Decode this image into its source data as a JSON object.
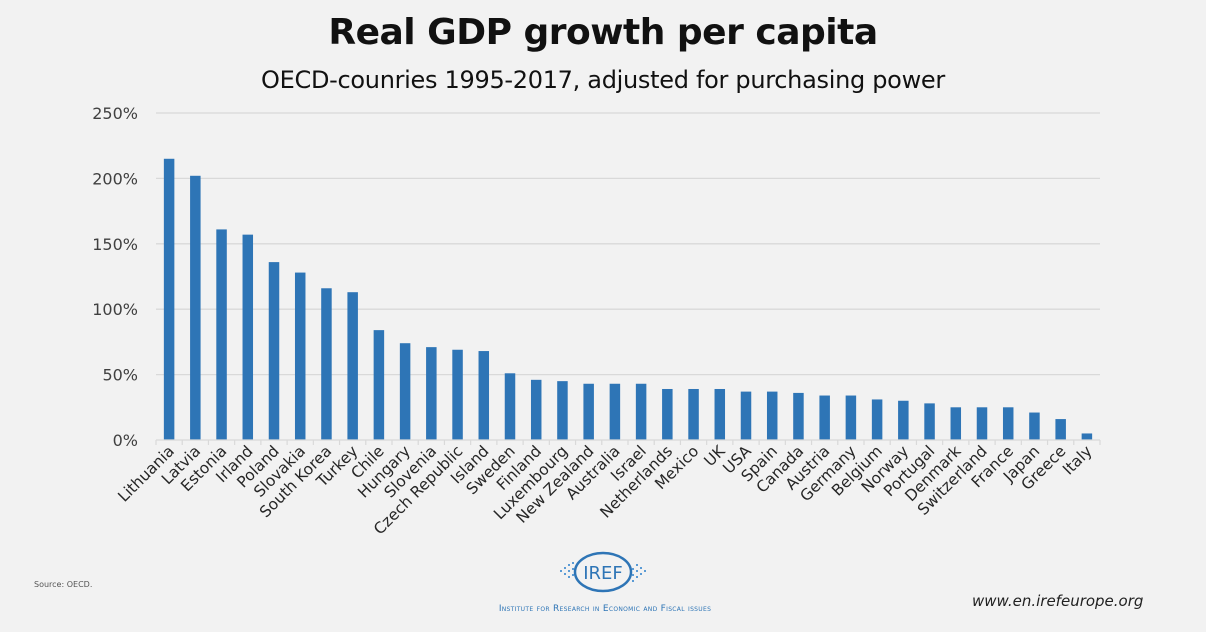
{
  "chart_data": {
    "type": "bar",
    "title": "Real GDP growth per capita",
    "subtitle": "OECD-counries 1995-2017, adjusted for purchasing power",
    "xlabel": "",
    "ylabel": "",
    "ylim": [
      0,
      250
    ],
    "yticks": [
      0,
      50,
      100,
      150,
      200,
      250
    ],
    "ytick_labels": [
      "0%",
      "50%",
      "100%",
      "150%",
      "200%",
      "250%"
    ],
    "grid": true,
    "legend": "none",
    "bar_color": "#2e75b6",
    "categories": [
      "Lithuania",
      "Latvia",
      "Estonia",
      "Irland",
      "Poland",
      "Slovakia",
      "South Korea",
      "Turkey",
      "Chile",
      "Hungary",
      "Slovenia",
      "Czech Republic",
      "Island",
      "Sweden",
      "Finland",
      "Luxembourg",
      "New Zealand",
      "Australia",
      "Israel",
      "Netherlands",
      "Mexico",
      "UK",
      "USA",
      "Spain",
      "Canada",
      "Austria",
      "Germany",
      "Belgium",
      "Norway",
      "Portugal",
      "Denmark",
      "Switzerland",
      "France",
      "Japan",
      "Greece",
      "Italy"
    ],
    "values": [
      215,
      202,
      161,
      157,
      136,
      128,
      116,
      113,
      84,
      74,
      71,
      69,
      68,
      51,
      46,
      45,
      43,
      43,
      43,
      39,
      39,
      39,
      37,
      37,
      36,
      34,
      34,
      31,
      30,
      28,
      25,
      25,
      25,
      21,
      16,
      5
    ]
  },
  "footer": {
    "source": "Source: OECD.",
    "logo_text": "IREF",
    "institute": "Institute for Research in Economic and Fiscal issues",
    "website": "www.en.irefeurope.org"
  }
}
